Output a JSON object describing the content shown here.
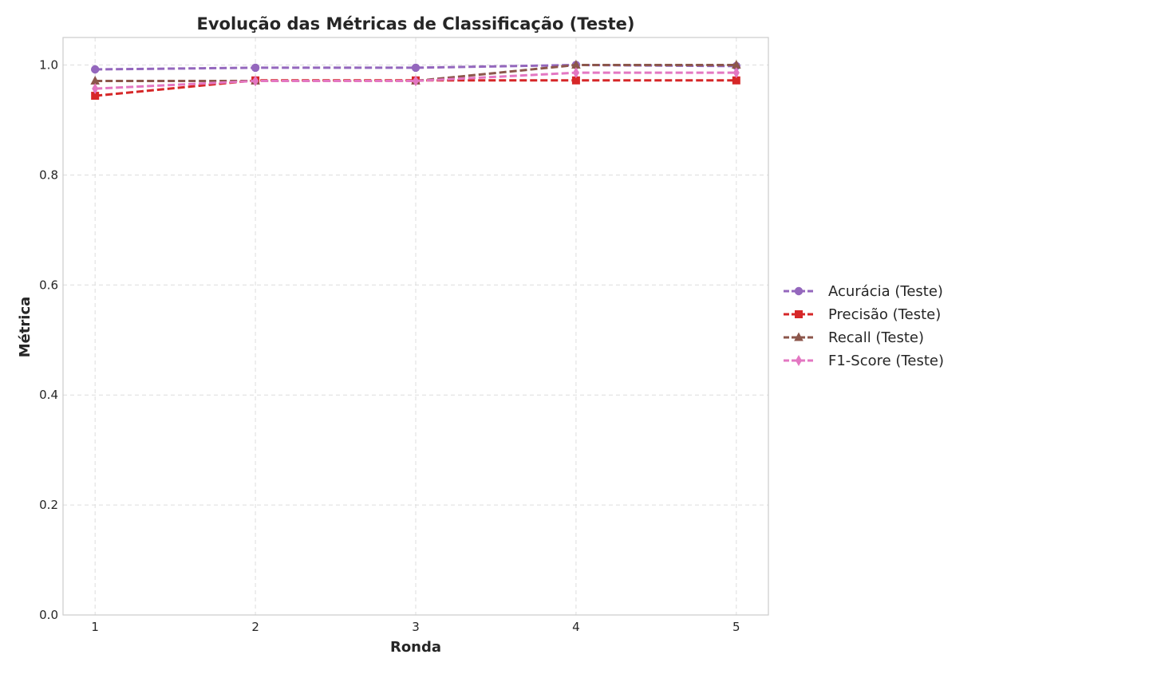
{
  "chart_data": {
    "type": "line",
    "title": "Evolução das Métricas de Classificação (Teste)",
    "xlabel": "Ronda",
    "ylabel": "Métrica",
    "x": [
      1,
      2,
      3,
      4,
      5
    ],
    "xlim": [
      0.8,
      5.2
    ],
    "ylim": [
      0.0,
      1.05
    ],
    "x_ticks": [
      "1",
      "2",
      "3",
      "4",
      "5"
    ],
    "y_ticks": [
      0.0,
      0.2,
      0.4,
      0.6,
      0.8,
      1.0
    ],
    "y_tick_labels": [
      "0.0",
      "0.2",
      "0.4",
      "0.6",
      "0.8",
      "1.0"
    ],
    "grid": true,
    "legend_position": "right-outside-center",
    "series": [
      {
        "name": "Acurácia (Teste)",
        "values": [
          0.992,
          0.995,
          0.995,
          1.0,
          0.998
        ],
        "color": "#9467bd",
        "marker": "circle"
      },
      {
        "name": "Precisão (Teste)",
        "values": [
          0.944,
          0.972,
          0.972,
          0.972,
          0.972
        ],
        "color": "#d62728",
        "marker": "square"
      },
      {
        "name": "Recall (Teste)",
        "values": [
          0.971,
          0.971,
          0.971,
          1.0,
          1.0
        ],
        "color": "#8c564b",
        "marker": "triangle"
      },
      {
        "name": "F1-Score (Teste)",
        "values": [
          0.957,
          0.971,
          0.971,
          0.986,
          0.986
        ],
        "color": "#e377c2",
        "marker": "thin-diamond"
      }
    ]
  }
}
